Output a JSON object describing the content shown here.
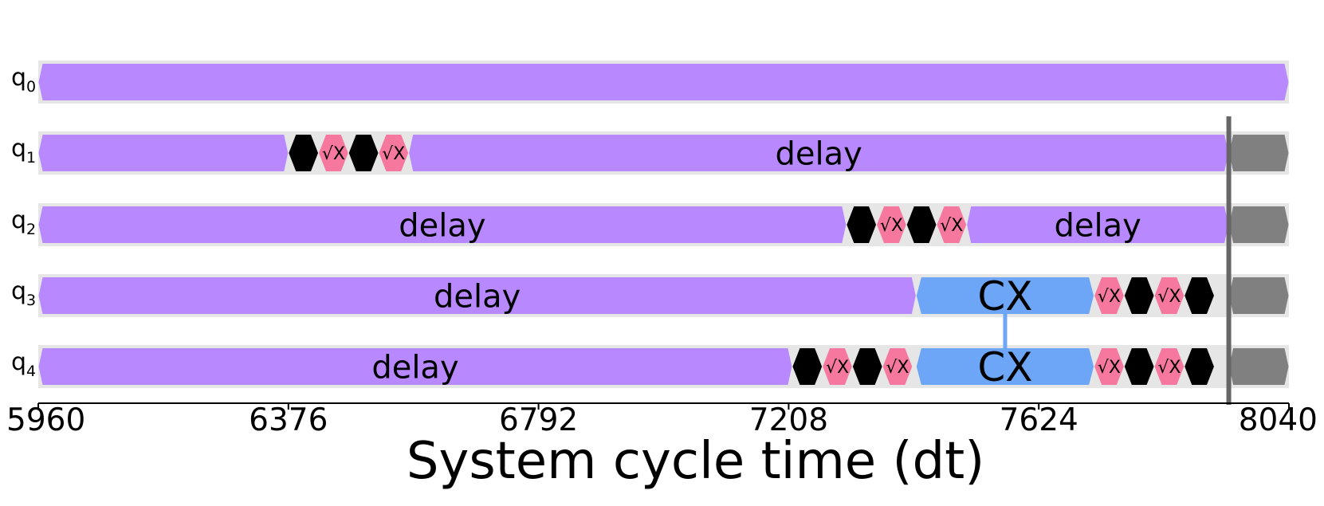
{
  "chart_data": {
    "type": "timeline",
    "xlabel": "System cycle time (dt)",
    "xlim": [
      5960,
      8040
    ],
    "xticks": [
      5960,
      6376,
      6792,
      7208,
      7624,
      8040
    ],
    "barrier_t": 7940,
    "colors": {
      "delay": "#b889fe",
      "sx": "#f6789e",
      "rz": "#000000",
      "cx": "#6ea6f7",
      "idle": "#808080",
      "lane": "#e6e6e6",
      "barrier": "#666666",
      "link": "#6ea6f7"
    },
    "qubits": [
      {
        "id": 0,
        "base": "q",
        "sub": "0",
        "gates": [
          {
            "kind": "delay",
            "start": 5960,
            "end": 8040,
            "label": ""
          }
        ]
      },
      {
        "id": 1,
        "base": "q",
        "sub": "1",
        "gates": [
          {
            "kind": "delay",
            "start": 5960,
            "end": 6376,
            "label": ""
          },
          {
            "kind": "rz",
            "start": 6376,
            "end": 6426,
            "label": ""
          },
          {
            "kind": "sx",
            "start": 6426,
            "end": 6476,
            "label": "√X"
          },
          {
            "kind": "rz",
            "start": 6476,
            "end": 6526,
            "label": ""
          },
          {
            "kind": "sx",
            "start": 6526,
            "end": 6576,
            "label": "√X"
          },
          {
            "kind": "delay",
            "start": 6576,
            "end": 7940,
            "label": "delay"
          },
          {
            "kind": "idle",
            "start": 7940,
            "end": 8040,
            "label": ""
          }
        ]
      },
      {
        "id": 2,
        "base": "q",
        "sub": "2",
        "gates": [
          {
            "kind": "delay",
            "start": 5960,
            "end": 7304,
            "label": "delay"
          },
          {
            "kind": "rz",
            "start": 7304,
            "end": 7354,
            "label": ""
          },
          {
            "kind": "sx",
            "start": 7354,
            "end": 7404,
            "label": "√X"
          },
          {
            "kind": "rz",
            "start": 7404,
            "end": 7454,
            "label": ""
          },
          {
            "kind": "sx",
            "start": 7454,
            "end": 7504,
            "label": "√X"
          },
          {
            "kind": "delay",
            "start": 7504,
            "end": 7940,
            "label": "delay"
          },
          {
            "kind": "idle",
            "start": 7940,
            "end": 8040,
            "label": ""
          }
        ]
      },
      {
        "id": 3,
        "base": "q",
        "sub": "3",
        "gates": [
          {
            "kind": "delay",
            "start": 5960,
            "end": 7420,
            "label": "delay"
          },
          {
            "kind": "cx",
            "start": 7420,
            "end": 7716,
            "label": "CX"
          },
          {
            "kind": "sx",
            "start": 7716,
            "end": 7766,
            "label": "√X"
          },
          {
            "kind": "rz",
            "start": 7766,
            "end": 7816,
            "label": ""
          },
          {
            "kind": "sx",
            "start": 7816,
            "end": 7866,
            "label": "√X"
          },
          {
            "kind": "rz",
            "start": 7866,
            "end": 7916,
            "label": ""
          },
          {
            "kind": "idle",
            "start": 7940,
            "end": 8040,
            "label": ""
          }
        ]
      },
      {
        "id": 4,
        "base": "q",
        "sub": "4",
        "gates": [
          {
            "kind": "delay",
            "start": 5960,
            "end": 7214,
            "label": "delay"
          },
          {
            "kind": "rz",
            "start": 7214,
            "end": 7264,
            "label": ""
          },
          {
            "kind": "sx",
            "start": 7264,
            "end": 7314,
            "label": "√X"
          },
          {
            "kind": "rz",
            "start": 7314,
            "end": 7364,
            "label": ""
          },
          {
            "kind": "sx",
            "start": 7364,
            "end": 7414,
            "label": "√X"
          },
          {
            "kind": "cx",
            "start": 7420,
            "end": 7716,
            "label": "CX"
          },
          {
            "kind": "sx",
            "start": 7716,
            "end": 7766,
            "label": "√X"
          },
          {
            "kind": "rz",
            "start": 7766,
            "end": 7816,
            "label": ""
          },
          {
            "kind": "sx",
            "start": 7816,
            "end": 7866,
            "label": "√X"
          },
          {
            "kind": "rz",
            "start": 7866,
            "end": 7916,
            "label": ""
          },
          {
            "kind": "idle",
            "start": 7940,
            "end": 8040,
            "label": ""
          }
        ]
      }
    ],
    "links": [
      {
        "from": 3,
        "to": 4,
        "t": 7568
      }
    ]
  }
}
